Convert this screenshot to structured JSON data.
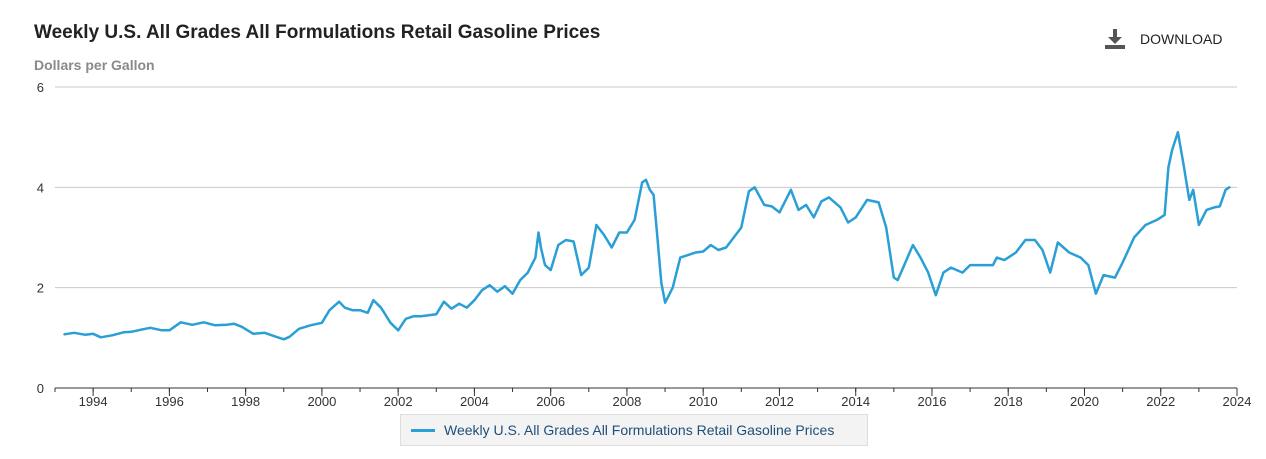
{
  "header": {
    "title": "Weekly U.S. All Grades All Formulations Retail Gasoline Prices",
    "subtitle": "Dollars per Gallon",
    "download_label": "DOWNLOAD",
    "download_icon": "download-icon"
  },
  "legend": {
    "label": "Weekly U.S. All Grades All Formulations Retail Gasoline Prices"
  },
  "colors": {
    "series": "#2a9fd6",
    "grid": "#c8c8c8",
    "icon": "#555555"
  },
  "chart_data": {
    "type": "line",
    "title": "Weekly U.S. All Grades All Formulations Retail Gasoline Prices",
    "ylabel": "Dollars per Gallon",
    "xlabel": "",
    "xlim": [
      1993.0,
      2024.0
    ],
    "ylim": [
      0,
      6
    ],
    "x_ticks": [
      1994,
      1996,
      1998,
      2000,
      2002,
      2004,
      2006,
      2008,
      2010,
      2012,
      2014,
      2016,
      2018,
      2020,
      2022,
      2024
    ],
    "y_ticks": [
      0,
      2,
      4,
      6
    ],
    "grid": true,
    "legend_position": "bottom-center",
    "series": [
      {
        "name": "Weekly U.S. All Grades All Formulations Retail Gasoline Prices",
        "x": [
          1993.25,
          1993.5,
          1993.8,
          1994.0,
          1994.2,
          1994.5,
          1994.8,
          1995.0,
          1995.3,
          1995.5,
          1995.8,
          1996.0,
          1996.3,
          1996.6,
          1996.9,
          1997.2,
          1997.5,
          1997.7,
          1997.9,
          1998.2,
          1998.5,
          1998.8,
          1999.0,
          1999.15,
          1999.4,
          1999.7,
          2000.0,
          2000.2,
          2000.45,
          2000.6,
          2000.8,
          2001.0,
          2001.2,
          2001.35,
          2001.55,
          2001.8,
          2002.0,
          2002.2,
          2002.4,
          2002.6,
          2002.8,
          2003.0,
          2003.2,
          2003.4,
          2003.6,
          2003.8,
          2004.0,
          2004.2,
          2004.4,
          2004.6,
          2004.8,
          2005.0,
          2005.2,
          2005.4,
          2005.6,
          2005.68,
          2005.75,
          2005.85,
          2006.0,
          2006.2,
          2006.4,
          2006.6,
          2006.8,
          2007.0,
          2007.2,
          2007.4,
          2007.6,
          2007.8,
          2008.0,
          2008.2,
          2008.4,
          2008.5,
          2008.6,
          2008.7,
          2008.8,
          2008.9,
          2009.0,
          2009.2,
          2009.4,
          2009.6,
          2009.8,
          2010.0,
          2010.2,
          2010.4,
          2010.6,
          2010.8,
          2011.0,
          2011.2,
          2011.35,
          2011.6,
          2011.8,
          2012.0,
          2012.3,
          2012.5,
          2012.7,
          2012.9,
          2013.1,
          2013.3,
          2013.6,
          2013.8,
          2014.0,
          2014.3,
          2014.6,
          2014.8,
          2015.0,
          2015.1,
          2015.3,
          2015.5,
          2015.7,
          2015.9,
          2016.1,
          2016.3,
          2016.5,
          2016.8,
          2017.0,
          2017.3,
          2017.6,
          2017.7,
          2017.9,
          2018.2,
          2018.45,
          2018.7,
          2018.9,
          2019.1,
          2019.3,
          2019.6,
          2019.9,
          2020.1,
          2020.3,
          2020.5,
          2020.8,
          2021.0,
          2021.3,
          2021.6,
          2021.9,
          2022.1,
          2022.2,
          2022.3,
          2022.45,
          2022.6,
          2022.75,
          2022.85,
          2023.0,
          2023.2,
          2023.4,
          2023.55,
          2023.7,
          2023.8
        ],
        "values": [
          1.07,
          1.1,
          1.06,
          1.08,
          1.01,
          1.05,
          1.11,
          1.12,
          1.17,
          1.2,
          1.15,
          1.15,
          1.31,
          1.26,
          1.31,
          1.25,
          1.26,
          1.28,
          1.22,
          1.08,
          1.1,
          1.02,
          0.97,
          1.02,
          1.18,
          1.25,
          1.3,
          1.55,
          1.72,
          1.6,
          1.55,
          1.55,
          1.5,
          1.75,
          1.6,
          1.3,
          1.15,
          1.38,
          1.43,
          1.43,
          1.45,
          1.47,
          1.72,
          1.58,
          1.68,
          1.6,
          1.75,
          1.95,
          2.05,
          1.92,
          2.03,
          1.88,
          2.15,
          2.3,
          2.6,
          3.1,
          2.78,
          2.45,
          2.35,
          2.85,
          2.95,
          2.92,
          2.25,
          2.4,
          3.25,
          3.05,
          2.8,
          3.1,
          3.1,
          3.35,
          4.1,
          4.15,
          3.95,
          3.85,
          3.0,
          2.1,
          1.7,
          2.0,
          2.6,
          2.65,
          2.7,
          2.72,
          2.85,
          2.75,
          2.8,
          3.0,
          3.2,
          3.92,
          4.0,
          3.65,
          3.62,
          3.5,
          3.95,
          3.55,
          3.65,
          3.4,
          3.72,
          3.8,
          3.6,
          3.3,
          3.4,
          3.75,
          3.7,
          3.2,
          2.2,
          2.15,
          2.5,
          2.85,
          2.6,
          2.3,
          1.85,
          2.3,
          2.4,
          2.3,
          2.45,
          2.45,
          2.45,
          2.6,
          2.55,
          2.7,
          2.95,
          2.95,
          2.75,
          2.3,
          2.9,
          2.7,
          2.6,
          2.45,
          1.88,
          2.25,
          2.2,
          2.5,
          3.0,
          3.25,
          3.35,
          3.45,
          4.4,
          4.75,
          5.1,
          4.45,
          3.75,
          3.95,
          3.25,
          3.55,
          3.6,
          3.62,
          3.95,
          4.0
        ]
      }
    ]
  }
}
